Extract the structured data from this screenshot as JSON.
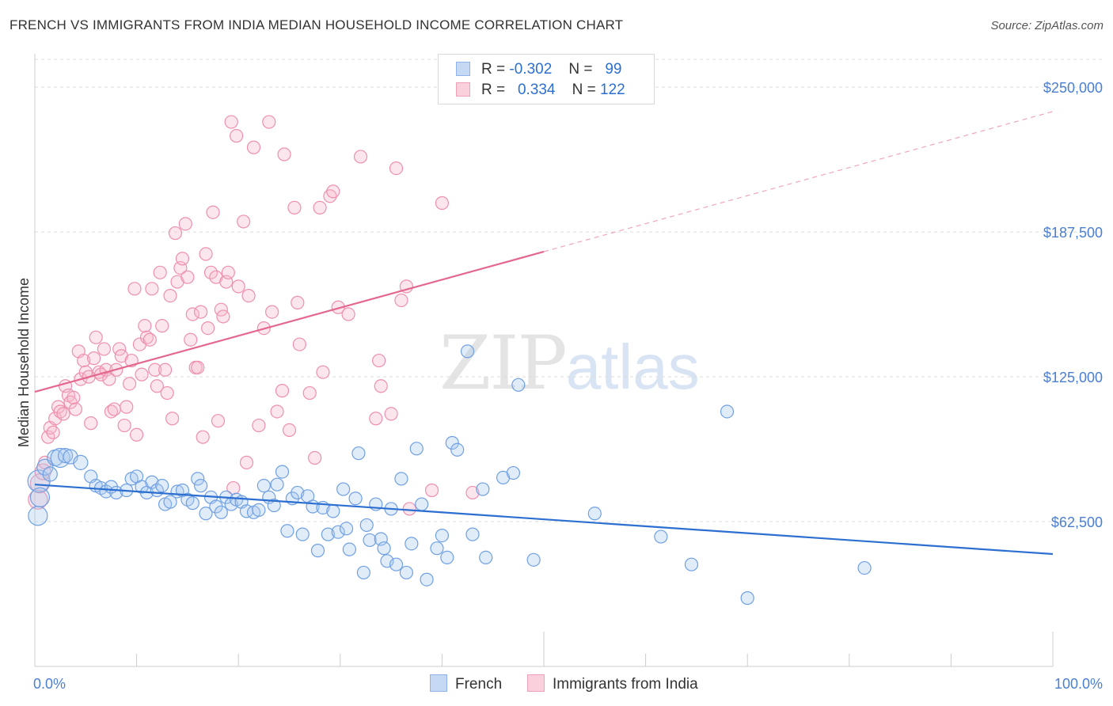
{
  "header": {
    "title": "FRENCH VS IMMIGRANTS FROM INDIA MEDIAN HOUSEHOLD INCOME CORRELATION CHART",
    "source": "Source: ZipAtlas.com"
  },
  "watermark": {
    "zip": "ZIP",
    "atlas": "atlas"
  },
  "legend": {
    "rows": [
      {
        "r_label": "R =",
        "r_value": "-0.302",
        "n_label": "N =",
        "n_value": "99",
        "color": "#a9c8ef"
      },
      {
        "r_label": "R =",
        "r_value": " 0.334",
        "n_label": "N =",
        "n_value": "122",
        "color": "#f6b8cb"
      }
    ]
  },
  "bottom_legend": [
    {
      "label": "French",
      "color": "#a9c8ef"
    },
    {
      "label": "Immigrants from India",
      "color": "#f6b8cb"
    }
  ],
  "colors": {
    "french": "#6fa0e3",
    "french_line": "#2c6fd0",
    "india": "#ee8fae",
    "india_line": "#e4678e",
    "grid": "#dcdcdc",
    "axis_label": "#4a7fd1"
  },
  "chart_data": {
    "type": "scatter",
    "title": "FRENCH VS IMMIGRANTS FROM INDIA MEDIAN HOUSEHOLD INCOME CORRELATION CHART",
    "xlabel": "",
    "ylabel": "Median Household Income",
    "xlim": [
      0,
      100
    ],
    "ylim": [
      0,
      262000
    ],
    "y_ticks": [
      62500,
      125000,
      187500,
      250000
    ],
    "y_tick_labels": [
      "$62,500",
      "$125,000",
      "$187,500",
      "$250,000"
    ],
    "x_tick_labels": [
      "0.0%",
      "100.0%"
    ],
    "grid": true,
    "legend_position": "top-center",
    "series": [
      {
        "name": "French",
        "color": "#6fa0e3",
        "trend": {
          "x0": 0,
          "y0": 78500,
          "x1": 100,
          "y1": 48500
        },
        "points": [
          [
            0.3,
            65000,
            12
          ],
          [
            0.4,
            80000,
            14
          ],
          [
            0.5,
            73000,
            12
          ],
          [
            1.0,
            86000,
            10
          ],
          [
            1.5,
            83000,
            9
          ],
          [
            2.0,
            90000,
            10
          ],
          [
            2.5,
            90000,
            12
          ],
          [
            3.0,
            91000,
            9
          ],
          [
            3.5,
            90500,
            9
          ],
          [
            4.5,
            88000,
            9
          ],
          [
            5.5,
            82000,
            8
          ],
          [
            6.0,
            78000,
            8
          ],
          [
            6.5,
            77000,
            8
          ],
          [
            7.0,
            75500,
            8
          ],
          [
            7.5,
            77500,
            8
          ],
          [
            8.0,
            75000,
            8
          ],
          [
            9.0,
            76000,
            8
          ],
          [
            9.5,
            81000,
            8
          ],
          [
            10.0,
            82000,
            8
          ],
          [
            10.5,
            77500,
            8
          ],
          [
            11.0,
            75000,
            8
          ],
          [
            11.5,
            79500,
            8
          ],
          [
            12.0,
            76000,
            8
          ],
          [
            12.5,
            78000,
            8
          ],
          [
            12.8,
            70000,
            8
          ],
          [
            13.3,
            71000,
            8
          ],
          [
            14.0,
            75500,
            8
          ],
          [
            14.5,
            76000,
            8
          ],
          [
            15.0,
            72000,
            8
          ],
          [
            15.5,
            70500,
            8
          ],
          [
            16.0,
            81000,
            8
          ],
          [
            16.3,
            78000,
            8
          ],
          [
            16.8,
            66000,
            8
          ],
          [
            17.3,
            73000,
            8
          ],
          [
            17.8,
            69000,
            8
          ],
          [
            18.3,
            66500,
            8
          ],
          [
            18.8,
            73000,
            8
          ],
          [
            19.3,
            70000,
            8
          ],
          [
            19.8,
            72000,
            8
          ],
          [
            20.3,
            71000,
            8
          ],
          [
            20.8,
            67000,
            8
          ],
          [
            21.5,
            66500,
            8
          ],
          [
            22.0,
            67500,
            8
          ],
          [
            22.5,
            78000,
            8
          ],
          [
            23.0,
            73000,
            8
          ],
          [
            23.5,
            69500,
            8
          ],
          [
            23.8,
            78500,
            8
          ],
          [
            24.3,
            84000,
            8
          ],
          [
            24.8,
            58500,
            8
          ],
          [
            25.3,
            72500,
            8
          ],
          [
            25.8,
            75000,
            8
          ],
          [
            26.3,
            57000,
            8
          ],
          [
            26.8,
            73500,
            8
          ],
          [
            27.3,
            69000,
            8
          ],
          [
            27.8,
            50000,
            8
          ],
          [
            28.3,
            68500,
            8
          ],
          [
            28.8,
            57000,
            8
          ],
          [
            29.3,
            67000,
            8
          ],
          [
            29.8,
            58000,
            8
          ],
          [
            30.3,
            76500,
            8
          ],
          [
            30.6,
            59500,
            8
          ],
          [
            30.9,
            50500,
            8
          ],
          [
            31.5,
            72500,
            8
          ],
          [
            31.8,
            92000,
            8
          ],
          [
            32.3,
            40500,
            8
          ],
          [
            32.6,
            61000,
            8
          ],
          [
            32.9,
            54500,
            8
          ],
          [
            33.5,
            70000,
            8
          ],
          [
            34.0,
            55000,
            8
          ],
          [
            34.3,
            51000,
            8
          ],
          [
            34.6,
            45500,
            8
          ],
          [
            35.0,
            68000,
            8
          ],
          [
            35.5,
            44000,
            8
          ],
          [
            36.0,
            81000,
            8
          ],
          [
            36.5,
            40500,
            8
          ],
          [
            37.0,
            53000,
            8
          ],
          [
            37.5,
            94000,
            8
          ],
          [
            38.0,
            70000,
            8
          ],
          [
            38.5,
            37500,
            8
          ],
          [
            39.5,
            51000,
            8
          ],
          [
            40.0,
            56500,
            8
          ],
          [
            40.5,
            47000,
            8
          ],
          [
            41.0,
            96500,
            8
          ],
          [
            41.5,
            93500,
            8
          ],
          [
            42.5,
            136000,
            8
          ],
          [
            43.0,
            57000,
            8
          ],
          [
            44.0,
            76500,
            8
          ],
          [
            44.3,
            47000,
            8
          ],
          [
            46.0,
            81500,
            8
          ],
          [
            47.0,
            83500,
            8
          ],
          [
            47.5,
            121500,
            8
          ],
          [
            49.0,
            46000,
            8
          ],
          [
            55.0,
            66000,
            8
          ],
          [
            61.5,
            56000,
            8
          ],
          [
            64.5,
            44000,
            8
          ],
          [
            68.0,
            110000,
            8
          ],
          [
            70.0,
            29500,
            8
          ],
          [
            81.5,
            42500,
            8
          ]
        ]
      },
      {
        "name": "Immigrants from India",
        "color": "#ee8fae",
        "trend": {
          "x0": 0,
          "y0": 118500,
          "x1": 50,
          "y1": 179000,
          "x_dash_end": 100,
          "y_dash_end": 239500
        },
        "points": [
          [
            0.3,
            72000,
            12
          ],
          [
            0.5,
            79000,
            12
          ],
          [
            0.8,
            84000,
            10
          ],
          [
            1.0,
            88000,
            8
          ],
          [
            1.3,
            99000,
            8
          ],
          [
            1.5,
            103000,
            8
          ],
          [
            1.8,
            101000,
            8
          ],
          [
            2.0,
            107000,
            8
          ],
          [
            2.3,
            112000,
            8
          ],
          [
            2.5,
            110000,
            8
          ],
          [
            2.8,
            109000,
            8
          ],
          [
            3.0,
            121000,
            8
          ],
          [
            3.3,
            117000,
            8
          ],
          [
            3.5,
            114000,
            8
          ],
          [
            3.8,
            116000,
            8
          ],
          [
            4.0,
            111000,
            8
          ],
          [
            4.3,
            136000,
            8
          ],
          [
            4.5,
            124000,
            8
          ],
          [
            4.8,
            132000,
            8
          ],
          [
            5.0,
            127000,
            8
          ],
          [
            5.3,
            125000,
            8
          ],
          [
            5.5,
            105000,
            8
          ],
          [
            5.8,
            133000,
            8
          ],
          [
            6.0,
            142000,
            8
          ],
          [
            6.3,
            127000,
            8
          ],
          [
            6.5,
            126000,
            8
          ],
          [
            6.8,
            137000,
            8
          ],
          [
            7.0,
            128000,
            8
          ],
          [
            7.3,
            124000,
            8
          ],
          [
            7.5,
            110000,
            8
          ],
          [
            7.8,
            111000,
            8
          ],
          [
            8.0,
            128000,
            8
          ],
          [
            8.3,
            137000,
            8
          ],
          [
            8.5,
            134000,
            8
          ],
          [
            8.8,
            104000,
            8
          ],
          [
            9.0,
            112000,
            8
          ],
          [
            9.3,
            122000,
            8
          ],
          [
            9.5,
            132000,
            8
          ],
          [
            9.8,
            163000,
            8
          ],
          [
            10.0,
            100000,
            8
          ],
          [
            10.3,
            139000,
            8
          ],
          [
            10.5,
            126000,
            8
          ],
          [
            10.8,
            147000,
            8
          ],
          [
            11.0,
            142000,
            8
          ],
          [
            11.3,
            141000,
            8
          ],
          [
            11.5,
            163000,
            8
          ],
          [
            11.8,
            128000,
            8
          ],
          [
            12.0,
            121000,
            8
          ],
          [
            12.3,
            170000,
            8
          ],
          [
            12.5,
            147000,
            8
          ],
          [
            12.8,
            128000,
            8
          ],
          [
            13.0,
            118000,
            8
          ],
          [
            13.3,
            160000,
            8
          ],
          [
            13.5,
            107000,
            8
          ],
          [
            13.8,
            187000,
            8
          ],
          [
            14.0,
            166000,
            8
          ],
          [
            14.3,
            172000,
            8
          ],
          [
            14.5,
            176000,
            8
          ],
          [
            14.8,
            191000,
            8
          ],
          [
            15.0,
            168000,
            8
          ],
          [
            15.3,
            141000,
            8
          ],
          [
            15.5,
            152000,
            8
          ],
          [
            15.8,
            129000,
            8
          ],
          [
            16.0,
            129000,
            8
          ],
          [
            16.3,
            153000,
            8
          ],
          [
            16.5,
            99000,
            8
          ],
          [
            16.8,
            178000,
            8
          ],
          [
            17.0,
            146000,
            8
          ],
          [
            17.3,
            170000,
            8
          ],
          [
            17.5,
            196000,
            8
          ],
          [
            17.8,
            168000,
            8
          ],
          [
            18.0,
            106000,
            8
          ],
          [
            18.3,
            154000,
            8
          ],
          [
            18.5,
            151000,
            8
          ],
          [
            18.8,
            166000,
            8
          ],
          [
            19.0,
            170000,
            8
          ],
          [
            19.3,
            235000,
            8
          ],
          [
            19.5,
            77000,
            8
          ],
          [
            19.8,
            229000,
            8
          ],
          [
            20.0,
            164000,
            8
          ],
          [
            20.5,
            192000,
            8
          ],
          [
            20.8,
            88000,
            8
          ],
          [
            21.0,
            160000,
            8
          ],
          [
            21.5,
            224000,
            8
          ],
          [
            22.0,
            104000,
            8
          ],
          [
            22.5,
            146000,
            8
          ],
          [
            23.0,
            235000,
            8
          ],
          [
            23.3,
            153000,
            8
          ],
          [
            23.8,
            110000,
            8
          ],
          [
            24.3,
            119000,
            8
          ],
          [
            24.5,
            221000,
            8
          ],
          [
            25.0,
            102000,
            8
          ],
          [
            25.5,
            198000,
            8
          ],
          [
            25.8,
            157000,
            8
          ],
          [
            26.0,
            139000,
            8
          ],
          [
            27.0,
            118000,
            8
          ],
          [
            27.5,
            90000,
            8
          ],
          [
            28.0,
            198000,
            8
          ],
          [
            28.3,
            127000,
            8
          ],
          [
            29.0,
            203000,
            8
          ],
          [
            29.3,
            205000,
            8
          ],
          [
            29.8,
            155000,
            8
          ],
          [
            30.8,
            152000,
            8
          ],
          [
            32.0,
            220000,
            8
          ],
          [
            33.5,
            107000,
            8
          ],
          [
            33.8,
            132000,
            8
          ],
          [
            34.0,
            121000,
            8
          ],
          [
            35.0,
            109000,
            8
          ],
          [
            35.5,
            215000,
            8
          ],
          [
            36.0,
            158000,
            8
          ],
          [
            36.5,
            164000,
            8
          ],
          [
            36.8,
            68000,
            8
          ],
          [
            39.0,
            76000,
            8
          ],
          [
            40.0,
            200000,
            8
          ],
          [
            43.0,
            75000,
            8
          ]
        ]
      }
    ]
  }
}
